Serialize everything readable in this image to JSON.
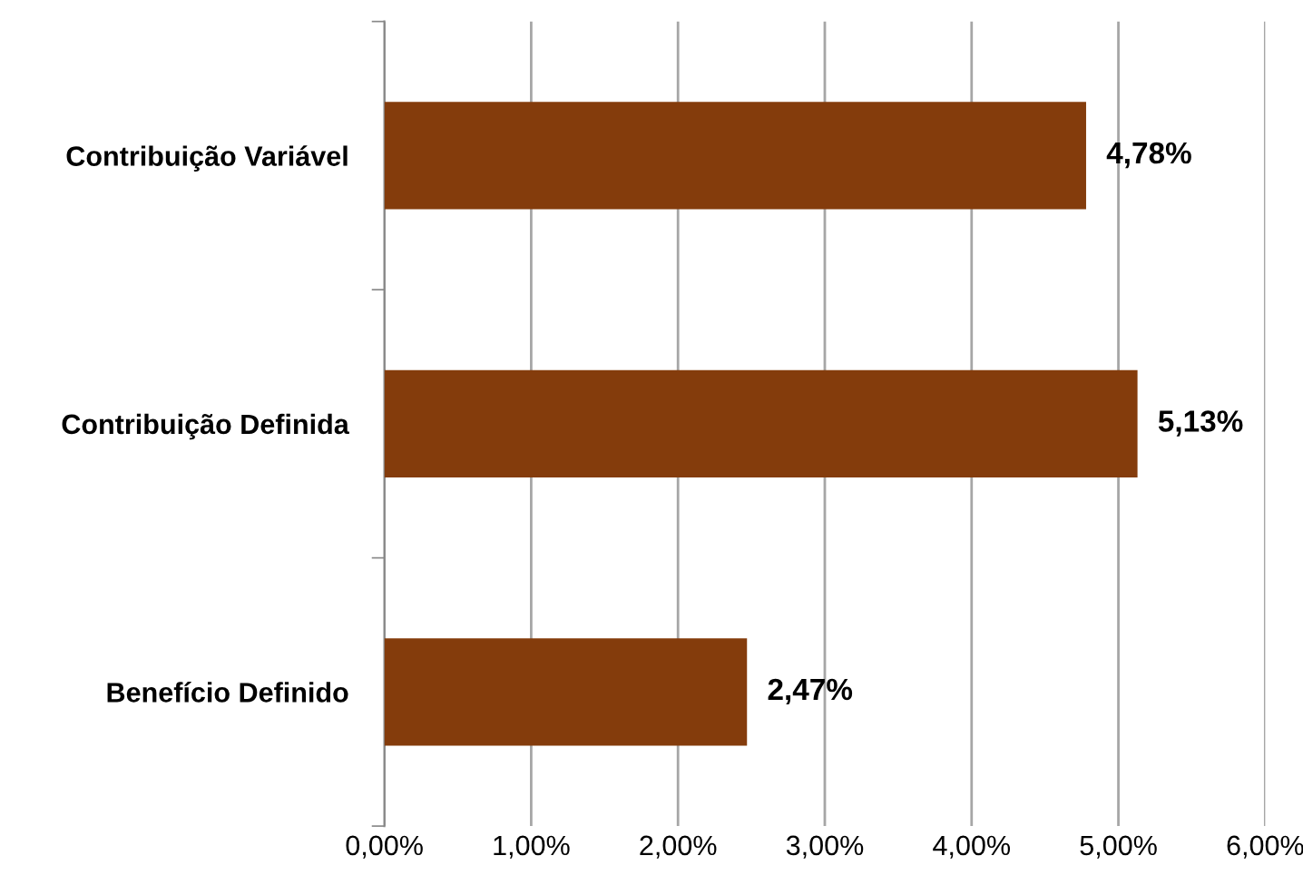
{
  "chart_data": {
    "type": "bar",
    "orientation": "horizontal",
    "categories": [
      "Contribuição Variável",
      "Contribuição Definida",
      "Benefício Definido"
    ],
    "values": [
      4.78,
      5.13,
      2.47
    ],
    "color": "#843c0c",
    "value_labels": [
      "4,78%",
      "5,13%",
      "2,47%"
    ],
    "xlim": [
      0,
      6
    ],
    "xticks": [
      {
        "value": 0,
        "label": "0,00%"
      },
      {
        "value": 1,
        "label": "1,00%"
      },
      {
        "value": 2,
        "label": "2,00%"
      },
      {
        "value": 3,
        "label": "3,00%"
      },
      {
        "value": 4,
        "label": "4,00%"
      },
      {
        "value": 5,
        "label": "5,00%"
      },
      {
        "value": 6,
        "label": "6,00%"
      }
    ],
    "grid": "x",
    "legend": false
  }
}
